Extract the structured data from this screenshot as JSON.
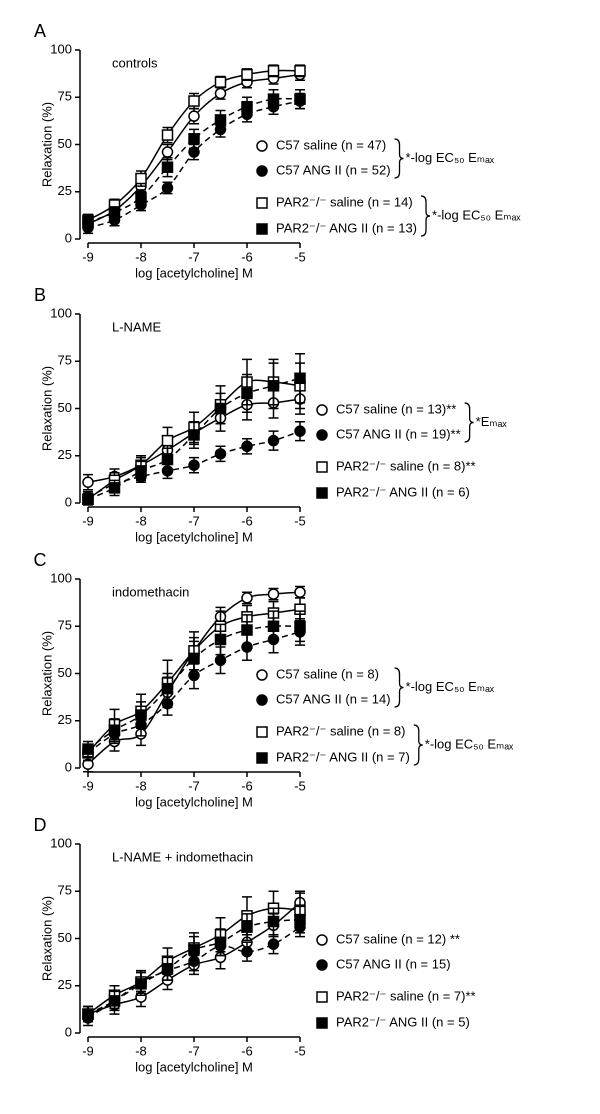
{
  "chart_data": [
    {
      "type": "line",
      "panel_label": "A",
      "title": "controls",
      "x_label": "log [acetylcholine] M",
      "y_label": "Relaxation (%)",
      "x": [
        -9,
        -8.5,
        -8,
        -7.5,
        -7,
        -6.5,
        -6,
        -5.5,
        -5
      ],
      "xlim": [
        -9,
        -5
      ],
      "xticks": [
        -9,
        -8,
        -7,
        -6,
        -5
      ],
      "ylim": [
        0,
        100
      ],
      "yticks": [
        0,
        25,
        50,
        75,
        100
      ],
      "legend": "lower right",
      "series": [
        {
          "name": "C57 saline (n = 47)",
          "color": "#000000",
          "marker": "circle",
          "filled": false,
          "dashed": false,
          "values": [
            8,
            15,
            28,
            46,
            65,
            77,
            83,
            85,
            87
          ],
          "errors": [
            3,
            3,
            3,
            4,
            4,
            3,
            3,
            3,
            3
          ]
        },
        {
          "name": "C57 ANG II (n = 52)",
          "color": "#000000",
          "marker": "circle",
          "filled": true,
          "dashed": true,
          "values": [
            6,
            10,
            18,
            27,
            46,
            58,
            66,
            70,
            73
          ],
          "errors": [
            3,
            3,
            3,
            3,
            4,
            4,
            4,
            4,
            4
          ]
        },
        {
          "name": "PAR2⁻/⁻ saline (n = 14)",
          "color": "#000000",
          "marker": "square",
          "filled": false,
          "dashed": false,
          "values": [
            10,
            18,
            32,
            55,
            73,
            83,
            87,
            89,
            89
          ],
          "errors": [
            3,
            3,
            4,
            4,
            4,
            3,
            3,
            3,
            3
          ]
        },
        {
          "name": "PAR2⁻/⁻ ANG II (n = 13)",
          "color": "#000000",
          "marker": "square",
          "filled": true,
          "dashed": true,
          "values": [
            9,
            14,
            22,
            38,
            53,
            63,
            70,
            74,
            74
          ],
          "errors": [
            3,
            3,
            4,
            5,
            5,
            5,
            5,
            5,
            5
          ]
        }
      ],
      "annotations": [
        "*-log EC₅₀ Eₘₐₓ",
        "*-log EC₅₀ Eₘₐₓ"
      ]
    },
    {
      "type": "line",
      "panel_label": "B",
      "title": "L-NAME",
      "x_label": "log [acetylcholine] M",
      "y_label": "Relaxation (%)",
      "x": [
        -9,
        -8.5,
        -8,
        -7.5,
        -7,
        -6.5,
        -6,
        -5.5,
        -5
      ],
      "xlim": [
        -9,
        -5
      ],
      "xticks": [
        -9,
        -8,
        -7,
        -6,
        -5
      ],
      "ylim": [
        0,
        100
      ],
      "yticks": [
        0,
        25,
        50,
        75,
        100
      ],
      "legend": "right",
      "series": [
        {
          "name": "C57 saline (n = 13)**",
          "color": "#000000",
          "marker": "circle",
          "filled": false,
          "dashed": false,
          "values": [
            11,
            14,
            20,
            28,
            37,
            45,
            52,
            53,
            55
          ],
          "errors": [
            4,
            4,
            4,
            5,
            6,
            7,
            8,
            8,
            8
          ]
        },
        {
          "name": "C57 ANG II (n = 19)**",
          "color": "#000000",
          "marker": "circle",
          "filled": true,
          "dashed": true,
          "values": [
            3,
            10,
            14,
            17,
            20,
            26,
            30,
            33,
            38
          ],
          "errors": [
            3,
            3,
            3,
            4,
            4,
            4,
            4,
            5,
            5
          ]
        },
        {
          "name": "PAR2⁻/⁻ saline (n = 8)**",
          "color": "#000000",
          "marker": "square",
          "filled": false,
          "dashed": false,
          "values": [
            2,
            12,
            20,
            33,
            40,
            52,
            64,
            64,
            62
          ],
          "errors": [
            3,
            4,
            5,
            7,
            8,
            10,
            12,
            12,
            12
          ]
        },
        {
          "name": "PAR2⁻/⁻ ANG II (n = 6)",
          "color": "#000000",
          "marker": "square",
          "filled": true,
          "dashed": true,
          "values": [
            2,
            8,
            17,
            23,
            36,
            50,
            58,
            62,
            66
          ],
          "errors": [
            3,
            4,
            5,
            6,
            7,
            8,
            10,
            12,
            13
          ]
        }
      ],
      "annotations": [
        "*Eₘₐₓ"
      ]
    },
    {
      "type": "line",
      "panel_label": "C",
      "title": "indomethacin",
      "x_label": "log [acetylcholine] M",
      "y_label": "Relaxation (%)",
      "x": [
        -9,
        -8.5,
        -8,
        -7.5,
        -7,
        -6.5,
        -6,
        -5.5,
        -5
      ],
      "xlim": [
        -9,
        -5
      ],
      "xticks": [
        -9,
        -8,
        -7,
        -6,
        -5
      ],
      "ylim": [
        0,
        100
      ],
      "yticks": [
        0,
        25,
        50,
        75,
        100
      ],
      "legend": "lower right",
      "series": [
        {
          "name": "C57 saline (n = 8)",
          "color": "#000000",
          "marker": "circle",
          "filled": false,
          "dashed": false,
          "values": [
            2,
            14,
            18,
            40,
            62,
            80,
            90,
            92,
            93
          ],
          "errors": [
            4,
            5,
            6,
            8,
            7,
            5,
            3,
            3,
            3
          ]
        },
        {
          "name": "C57 ANG II (n = 14)",
          "color": "#000000",
          "marker": "circle",
          "filled": true,
          "dashed": true,
          "values": [
            8,
            18,
            23,
            34,
            49,
            57,
            64,
            68,
            72
          ],
          "errors": [
            4,
            5,
            6,
            6,
            7,
            7,
            7,
            7,
            7
          ]
        },
        {
          "name": "PAR2⁻/⁻ saline (n = 8)",
          "color": "#000000",
          "marker": "square",
          "filled": false,
          "dashed": false,
          "values": [
            8,
            23,
            30,
            45,
            62,
            75,
            80,
            82,
            84
          ],
          "errors": [
            4,
            8,
            9,
            12,
            10,
            8,
            6,
            6,
            6
          ]
        },
        {
          "name": "PAR2⁻/⁻ ANG II (n = 7)",
          "color": "#000000",
          "marker": "square",
          "filled": true,
          "dashed": true,
          "values": [
            10,
            20,
            28,
            42,
            58,
            68,
            73,
            75,
            75
          ],
          "errors": [
            4,
            6,
            7,
            8,
            9,
            8,
            8,
            8,
            8
          ]
        }
      ],
      "annotations": [
        "*-log EC₅₀ Eₘₐₓ",
        "*-log EC₅₀ Eₘₐₓ"
      ]
    },
    {
      "type": "line",
      "panel_label": "D",
      "title": "L-NAME + indomethacin",
      "x_label": "log [acetylcholine] M",
      "y_label": "Relaxation (%)",
      "x": [
        -9,
        -8.5,
        -8,
        -7.5,
        -7,
        -6.5,
        -6,
        -5.5,
        -5
      ],
      "xlim": [
        -9,
        -5
      ],
      "xticks": [
        -9,
        -8,
        -7,
        -6,
        -5
      ],
      "ylim": [
        0,
        100
      ],
      "yticks": [
        0,
        25,
        50,
        75,
        100
      ],
      "legend": "right",
      "series": [
        {
          "name": "C57 saline (n = 12) **",
          "color": "#000000",
          "marker": "circle",
          "filled": false,
          "dashed": false,
          "values": [
            10,
            15,
            19,
            28,
            36,
            40,
            48,
            57,
            69
          ],
          "errors": [
            4,
            5,
            5,
            5,
            5,
            6,
            6,
            6,
            6
          ]
        },
        {
          "name": "C57 ANG II (n = 15)",
          "color": "#000000",
          "marker": "circle",
          "filled": true,
          "dashed": true,
          "values": [
            8,
            17,
            27,
            33,
            38,
            46,
            43,
            47,
            56
          ],
          "errors": [
            4,
            4,
            5,
            5,
            5,
            5,
            5,
            5,
            5
          ]
        },
        {
          "name": "PAR2⁻/⁻ saline (n = 7)**",
          "color": "#000000",
          "marker": "square",
          "filled": false,
          "dashed": false,
          "values": [
            10,
            20,
            27,
            38,
            45,
            52,
            62,
            66,
            65
          ],
          "errors": [
            4,
            5,
            6,
            7,
            8,
            9,
            10,
            9,
            9
          ]
        },
        {
          "name": "PAR2⁻/⁻ ANG II (n = 5)",
          "color": "#000000",
          "marker": "square",
          "filled": true,
          "dashed": true,
          "values": [
            10,
            17,
            26,
            34,
            44,
            48,
            56,
            59,
            60
          ],
          "errors": [
            4,
            5,
            6,
            6,
            7,
            7,
            7,
            7,
            7
          ]
        }
      ],
      "annotations": []
    }
  ]
}
